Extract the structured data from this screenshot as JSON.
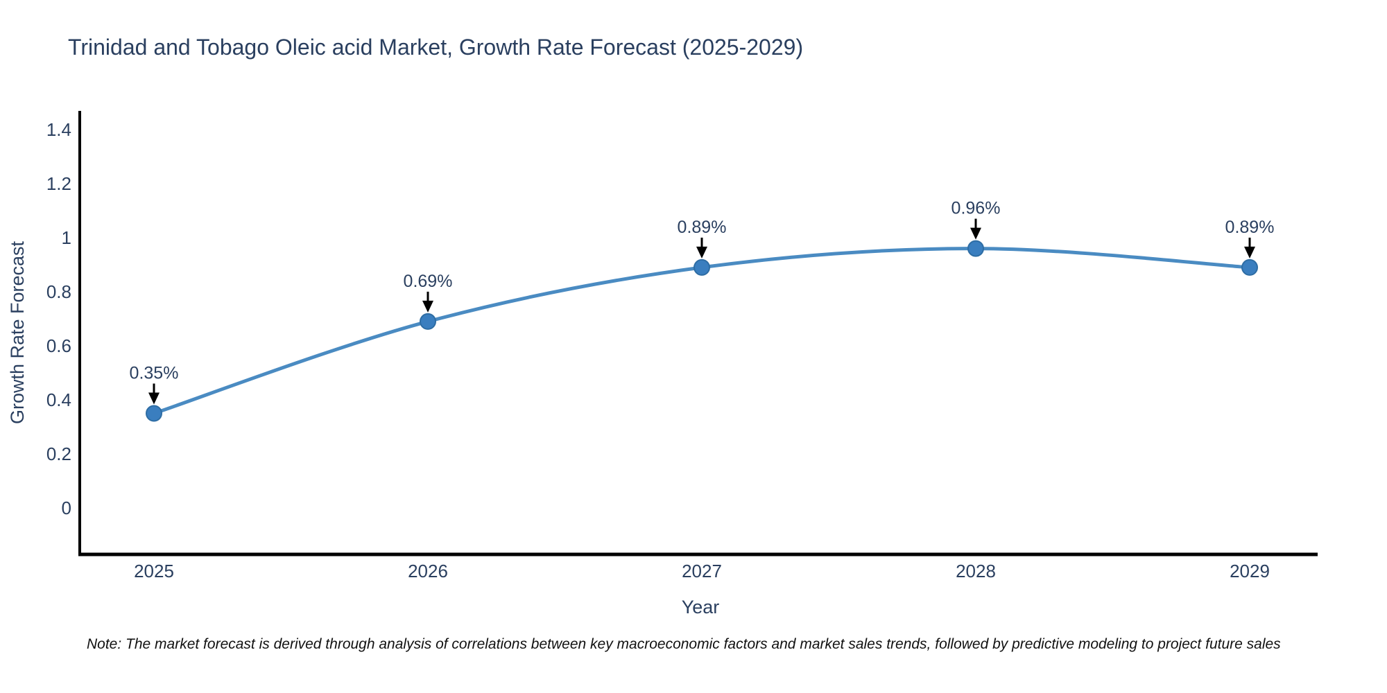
{
  "title": "Trinidad and Tobago Oleic acid Market, Growth Rate Forecast (2025-2029)",
  "note": "Note: The market forecast is derived through analysis of correlations between key macroeconomic factors and market sales trends, followed by predictive modeling to project future sales",
  "chart_data": {
    "type": "line",
    "title": "Trinidad and Tobago Oleic acid Market, Growth Rate Forecast (2025-2029)",
    "categories": [
      "2025",
      "2026",
      "2027",
      "2028",
      "2029"
    ],
    "series": [
      {
        "name": "Growth Rate Forecast",
        "values": [
          0.35,
          0.69,
          0.89,
          0.96,
          0.89
        ]
      }
    ],
    "point_labels": [
      "0.35%",
      "0.69%",
      "0.89%",
      "0.96%",
      "0.89%"
    ],
    "xlabel": "Year",
    "ylabel": "Growth Rate Forecast",
    "ylim": [
      -0.17,
      1.47
    ],
    "yticks": [
      0,
      0.2,
      0.4,
      0.6,
      0.8,
      1,
      1.2,
      1.4
    ],
    "ytick_labels": [
      "0",
      "0.2",
      "0.4",
      "0.6",
      "0.8",
      "1",
      "1.2",
      "1.4"
    ],
    "line_shape": "spline",
    "grid": false,
    "legend_position": "none",
    "colors": {
      "line": "#4a8bc2",
      "marker": "#3a7ebf",
      "marker_edge": "#2e6da4",
      "axis": "#000000",
      "text": "#2a3f5f",
      "arrow": "#000000"
    }
  }
}
